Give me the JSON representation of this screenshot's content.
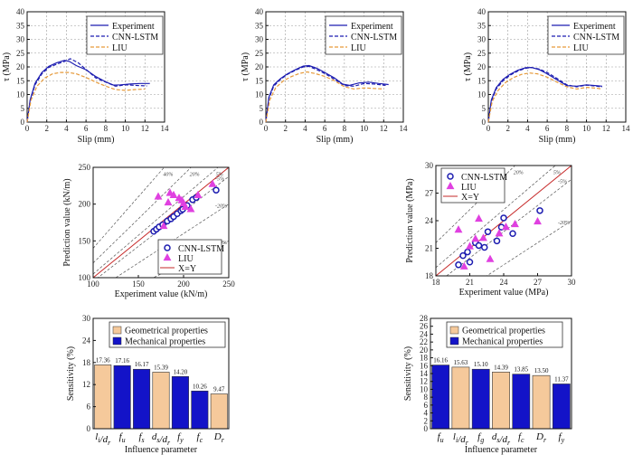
{
  "chart_data": [
    {
      "id": "c1",
      "type": "line",
      "xlabel": "Slip (mm)",
      "ylabel": "τ (MPa)",
      "xlim": [
        0,
        14
      ],
      "ylim": [
        0,
        40
      ],
      "xticks": [
        "0",
        "2",
        "4",
        "6",
        "8",
        "10",
        "12",
        "14"
      ],
      "yticks": [
        "0",
        "5",
        "10",
        "15",
        "20",
        "25",
        "30",
        "35",
        "40"
      ],
      "legend": [
        "Experiment",
        "CNN-LSTM",
        "LIU"
      ],
      "series": [
        {
          "name": "Experiment",
          "color": "#1c1cb0",
          "dash": "solid",
          "points": [
            [
              0,
              0
            ],
            [
              0.3,
              8
            ],
            [
              0.8,
              14
            ],
            [
              1.5,
              18
            ],
            [
              2.2,
              20.2
            ],
            [
              3,
              21.5
            ],
            [
              3.8,
              22.4
            ],
            [
              4.3,
              22
            ],
            [
              5,
              20.5
            ],
            [
              6,
              19
            ],
            [
              7,
              16.5
            ],
            [
              8,
              14.6
            ],
            [
              8.8,
              13.4
            ],
            [
              9.5,
              13.5
            ],
            [
              10.5,
              13.8
            ],
            [
              11.5,
              14
            ],
            [
              12.5,
              14
            ]
          ]
        },
        {
          "name": "CNN-LSTM",
          "color": "#1c1cb0",
          "dash": "dashed",
          "points": [
            [
              0,
              0
            ],
            [
              0.3,
              7.5
            ],
            [
              0.8,
              13.5
            ],
            [
              1.5,
              17.5
            ],
            [
              2.2,
              19.8
            ],
            [
              3,
              21
            ],
            [
              3.8,
              22
            ],
            [
              4.4,
              23
            ],
            [
              5.2,
              21.5
            ],
            [
              6.2,
              18.5
            ],
            [
              7,
              16
            ],
            [
              8,
              14.5
            ],
            [
              9,
              13
            ],
            [
              10,
              13.5
            ],
            [
              11,
              13.3
            ],
            [
              12.2,
              13.1
            ]
          ]
        },
        {
          "name": "LIU",
          "color": "#e69a3a",
          "dash": "dashed",
          "points": [
            [
              0,
              0
            ],
            [
              0.4,
              8
            ],
            [
              1,
              13
            ],
            [
              1.8,
              16
            ],
            [
              2.6,
              17.5
            ],
            [
              3.4,
              18
            ],
            [
              4.2,
              18
            ],
            [
              5,
              17.5
            ],
            [
              6,
              16.2
            ],
            [
              7,
              14.5
            ],
            [
              8,
              13
            ],
            [
              9,
              11.8
            ],
            [
              10,
              11.5
            ],
            [
              11,
              11.8
            ],
            [
              12,
              12
            ]
          ]
        }
      ]
    },
    {
      "id": "c2",
      "type": "line",
      "xlabel": "Slip (mm)",
      "ylabel": "τ (MPa)",
      "xlim": [
        0,
        14
      ],
      "ylim": [
        0,
        40
      ],
      "xticks": [
        "0",
        "2",
        "4",
        "6",
        "8",
        "10",
        "12",
        "14"
      ],
      "yticks": [
        "0",
        "5",
        "10",
        "15",
        "20",
        "25",
        "30",
        "35",
        "40"
      ],
      "legend": [
        "Experiment",
        "CNN-LSTM",
        "LIU"
      ],
      "series": [
        {
          "name": "Experiment",
          "color": "#1c1cb0",
          "dash": "solid",
          "points": [
            [
              0,
              0
            ],
            [
              0.3,
              9
            ],
            [
              0.8,
              13.5
            ],
            [
              1.5,
              15.8
            ],
            [
              2.2,
              17.5
            ],
            [
              3,
              19
            ],
            [
              3.8,
              20.3
            ],
            [
              4.4,
              20.5
            ],
            [
              5.2,
              19.5
            ],
            [
              6,
              18
            ],
            [
              7,
              16
            ],
            [
              7.8,
              13.8
            ],
            [
              8.5,
              13.3
            ],
            [
              9.5,
              14.2
            ],
            [
              10.5,
              14.5
            ],
            [
              11.5,
              14
            ],
            [
              12.5,
              13.6
            ]
          ]
        },
        {
          "name": "CNN-LSTM",
          "color": "#1c1cb0",
          "dash": "dashed",
          "points": [
            [
              0,
              0
            ],
            [
              0.3,
              8.5
            ],
            [
              0.8,
              13
            ],
            [
              1.5,
              15.5
            ],
            [
              2.2,
              17.3
            ],
            [
              3,
              18.8
            ],
            [
              3.8,
              20
            ],
            [
              4.4,
              20.2
            ],
            [
              5.2,
              19
            ],
            [
              6,
              17.6
            ],
            [
              7,
              15.5
            ],
            [
              8,
              13.2
            ],
            [
              9,
              13
            ],
            [
              10,
              14
            ],
            [
              11,
              13.8
            ],
            [
              12.2,
              13.3
            ]
          ]
        },
        {
          "name": "LIU",
          "color": "#e69a3a",
          "dash": "dashed",
          "points": [
            [
              0,
              0
            ],
            [
              0.4,
              8
            ],
            [
              1,
              12.5
            ],
            [
              1.8,
              15
            ],
            [
              2.6,
              16.5
            ],
            [
              3.4,
              17.6
            ],
            [
              4.2,
              18.2
            ],
            [
              5,
              17.6
            ],
            [
              6,
              16.6
            ],
            [
              7,
              15
            ],
            [
              8,
              12.8
            ],
            [
              9,
              12
            ],
            [
              10,
              12.4
            ],
            [
              11,
              12.2
            ],
            [
              12,
              12
            ]
          ]
        }
      ]
    },
    {
      "id": "c3",
      "type": "line",
      "xlabel": "Slip (mm)",
      "ylabel": "τ (MPa)",
      "xlim": [
        0,
        14
      ],
      "ylim": [
        0,
        40
      ],
      "xticks": [
        "0",
        "2",
        "4",
        "6",
        "8",
        "10",
        "12",
        "14"
      ],
      "yticks": [
        "0",
        "5",
        "10",
        "15",
        "20",
        "25",
        "30",
        "35",
        "40"
      ],
      "legend": [
        "Experiment",
        "CNN-LSTM",
        "LIU"
      ],
      "series": [
        {
          "name": "Experiment",
          "color": "#1c1cb0",
          "dash": "solid",
          "points": [
            [
              0,
              0
            ],
            [
              0.3,
              8
            ],
            [
              0.8,
              12.5
            ],
            [
              1.5,
              15.5
            ],
            [
              2.2,
              17.3
            ],
            [
              3,
              18.8
            ],
            [
              3.8,
              19.7
            ],
            [
              4.4,
              19.8
            ],
            [
              5.2,
              19
            ],
            [
              6,
              17.5
            ],
            [
              7,
              15.3
            ],
            [
              8,
              13.2
            ],
            [
              9,
              13
            ],
            [
              10,
              13.5
            ],
            [
              11,
              13.2
            ],
            [
              11.6,
              13
            ]
          ]
        },
        {
          "name": "CNN-LSTM",
          "color": "#1c1cb0",
          "dash": "dashed",
          "points": [
            [
              0,
              0
            ],
            [
              0.3,
              7.5
            ],
            [
              0.8,
              12
            ],
            [
              1.5,
              15
            ],
            [
              2.2,
              17
            ],
            [
              3,
              18.5
            ],
            [
              3.8,
              19.5
            ],
            [
              4.4,
              19.8
            ],
            [
              5.2,
              19.2
            ],
            [
              6,
              18
            ],
            [
              7,
              15.8
            ],
            [
              8,
              13.5
            ],
            [
              9,
              12.8
            ],
            [
              10,
              13.4
            ],
            [
              11,
              13
            ],
            [
              11.6,
              12.8
            ]
          ]
        },
        {
          "name": "LIU",
          "color": "#e69a3a",
          "dash": "dashed",
          "points": [
            [
              0,
              0
            ],
            [
              0.4,
              7.5
            ],
            [
              1,
              11.5
            ],
            [
              1.8,
              14.5
            ],
            [
              2.6,
              16.2
            ],
            [
              3.4,
              17.3
            ],
            [
              4.2,
              17.8
            ],
            [
              5,
              17.5
            ],
            [
              6,
              16.3
            ],
            [
              7,
              14.5
            ],
            [
              8,
              12.8
            ],
            [
              9,
              12
            ],
            [
              10,
              12.6
            ],
            [
              11,
              12.3
            ],
            [
              11.6,
              12
            ]
          ]
        }
      ]
    },
    {
      "id": "c4",
      "type": "scatter",
      "xlabel": "Experiment value (kN/m)",
      "ylabel": "Prediction value (kN/m)",
      "xlim": [
        100,
        250
      ],
      "ylim": [
        100,
        250
      ],
      "xticks": [
        "100",
        "150",
        "200",
        "250"
      ],
      "yticks": [
        "100",
        "150",
        "200",
        "250"
      ],
      "bands": [
        "-40%",
        "-20%",
        "-5%",
        "5%",
        "20%",
        "40%"
      ],
      "band_labels": [
        "-40%",
        "-20%",
        "-5%",
        "5%",
        "20%",
        "40%"
      ],
      "legend": [
        "CNN-LSTM",
        "LIU",
        "X=Y"
      ],
      "series": [
        {
          "name": "CNN-LSTM",
          "marker": "circle",
          "points": [
            [
              167,
              163
            ],
            [
              170,
              166
            ],
            [
              173,
              169
            ],
            [
              177,
              172
            ],
            [
              182,
              177
            ],
            [
              186,
              180
            ],
            [
              189,
              183
            ],
            [
              193,
              187
            ],
            [
              197,
              191
            ],
            [
              199,
              193
            ],
            [
              204,
              198
            ],
            [
              210,
              206
            ],
            [
              214,
              209
            ],
            [
              236,
              219
            ]
          ]
        },
        {
          "name": "LIU",
          "marker": "triangle",
          "points": [
            [
              172,
              210
            ],
            [
              183,
              202
            ],
            [
              185,
              215
            ],
            [
              189,
              212
            ],
            [
              195,
              208
            ],
            [
              198,
              205
            ],
            [
              200,
              201
            ],
            [
              202,
              196
            ],
            [
              208,
              193
            ],
            [
              216,
              212
            ],
            [
              232,
              227
            ],
            [
              178,
              170
            ]
          ]
        }
      ]
    },
    {
      "id": "c5",
      "type": "scatter",
      "xlabel": "Experiment value (MPa)",
      "ylabel": "Prediction value (MPa)",
      "xlim": [
        18,
        30
      ],
      "ylim": [
        18,
        30
      ],
      "xticks": [
        "18",
        "21",
        "24",
        "27",
        "30"
      ],
      "yticks": [
        "18",
        "21",
        "24",
        "27",
        "30"
      ],
      "bands": [
        "-20%",
        "-5%",
        "5%",
        "20%"
      ],
      "band_labels": [
        "-20%",
        "-5%",
        "5%",
        "20%"
      ],
      "legend": [
        "CNN-LSTM",
        "LIU",
        "X=Y"
      ],
      "series": [
        {
          "name": "CNN-LSTM",
          "marker": "circle",
          "points": [
            [
              20,
              19.2
            ],
            [
              20.4,
              20.2
            ],
            [
              20.8,
              20.6
            ],
            [
              21,
              19.5
            ],
            [
              21.5,
              21.6
            ],
            [
              21.8,
              21.3
            ],
            [
              22.3,
              21.1
            ],
            [
              22.6,
              22.8
            ],
            [
              23.4,
              21.8
            ],
            [
              23.8,
              23.3
            ],
            [
              24,
              24.3
            ],
            [
              24.8,
              22.6
            ],
            [
              27.2,
              25.1
            ]
          ]
        },
        {
          "name": "LIU",
          "marker": "triangle",
          "points": [
            [
              20,
              23
            ],
            [
              20.5,
              19
            ],
            [
              21,
              21.2
            ],
            [
              21.5,
              22
            ],
            [
              21.8,
              24.2
            ],
            [
              22.2,
              22.1
            ],
            [
              22.8,
              19.8
            ],
            [
              23.6,
              22.6
            ],
            [
              24.2,
              23.3
            ],
            [
              25,
              23.6
            ],
            [
              27,
              23.9
            ]
          ]
        }
      ]
    },
    {
      "id": "c6",
      "type": "bar",
      "xlabel": "Influence parameter",
      "ylabel": "Sensitivity (%)",
      "ylim": [
        0,
        30
      ],
      "yticks": [
        "0",
        "6",
        "12",
        "18",
        "24",
        "30"
      ],
      "legend": [
        "Geometrical properties",
        "Mechanical properties"
      ],
      "categories": [
        "l_i/d_r",
        "f_u",
        "f_s",
        "d_s/d_r",
        "f_y",
        "f_c",
        "D_r"
      ],
      "values": [
        17.36,
        17.16,
        16.17,
        15.39,
        14.2,
        10.26,
        9.47
      ],
      "value_labels": [
        "17.36",
        "17.16",
        "16.17",
        "15.39",
        "14.20",
        "10.26",
        "9.47"
      ],
      "groups": [
        "geo",
        "mech",
        "mech",
        "geo",
        "mech",
        "mech",
        "geo"
      ]
    },
    {
      "id": "c7",
      "type": "bar",
      "xlabel": "Influence parameter",
      "ylabel": "Sensitivity (%)",
      "ylim": [
        0,
        28
      ],
      "yticks": [
        "0",
        "2",
        "4",
        "6",
        "8",
        "10",
        "12",
        "14",
        "16",
        "18",
        "20",
        "22",
        "24",
        "26",
        "28"
      ],
      "legend": [
        "Geometrical properties",
        "Mechanical properties"
      ],
      "categories": [
        "f_u",
        "l_i/d_r",
        "f_g",
        "d_s/d_r",
        "f_c",
        "D_r",
        "f_y"
      ],
      "values": [
        16.16,
        15.63,
        15.1,
        14.39,
        13.85,
        13.5,
        11.37
      ],
      "value_labels": [
        "16.16",
        "15.63",
        "15.10",
        "14.39",
        "13.85",
        "13.50",
        "11.37"
      ],
      "groups": [
        "mech",
        "geo",
        "mech",
        "geo",
        "mech",
        "geo",
        "mech"
      ]
    }
  ],
  "colors": {
    "navy": "#1c1cb0",
    "orange": "#e69a3a",
    "magenta": "#e040e0",
    "red": "#c62828",
    "geo": "#f5c99b",
    "mech": "#1313c8",
    "grid": "#9a9a9a"
  }
}
